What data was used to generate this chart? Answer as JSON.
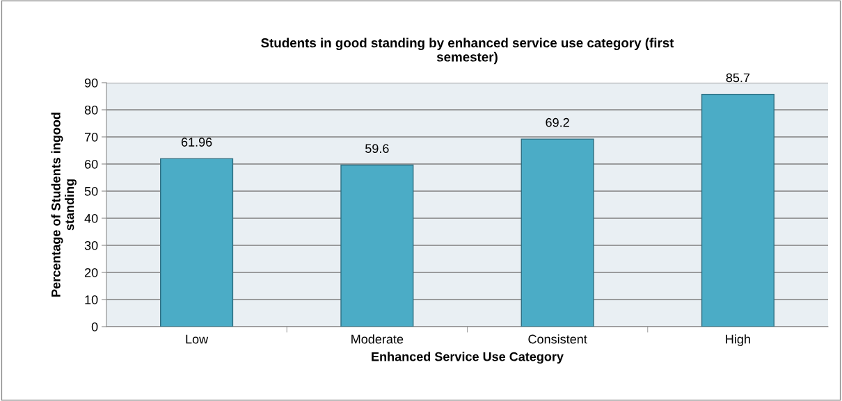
{
  "chart_data": {
    "type": "bar",
    "title": "Students in good standing by enhanced service use category (first\nsemester)",
    "xlabel": "Enhanced Service Use Category",
    "ylabel": "Percentage of Students ingood\nstanding",
    "categories": [
      "Low",
      "Moderate",
      "Consistent",
      "High"
    ],
    "values": [
      61.96,
      59.6,
      69.2,
      85.7
    ],
    "color": "#4bacc6",
    "ylim": [
      0,
      90
    ],
    "yticks": [
      0,
      10,
      20,
      30,
      40,
      50,
      60,
      70,
      80,
      90
    ],
    "grid": "y",
    "data_labels": true,
    "legend": false
  }
}
